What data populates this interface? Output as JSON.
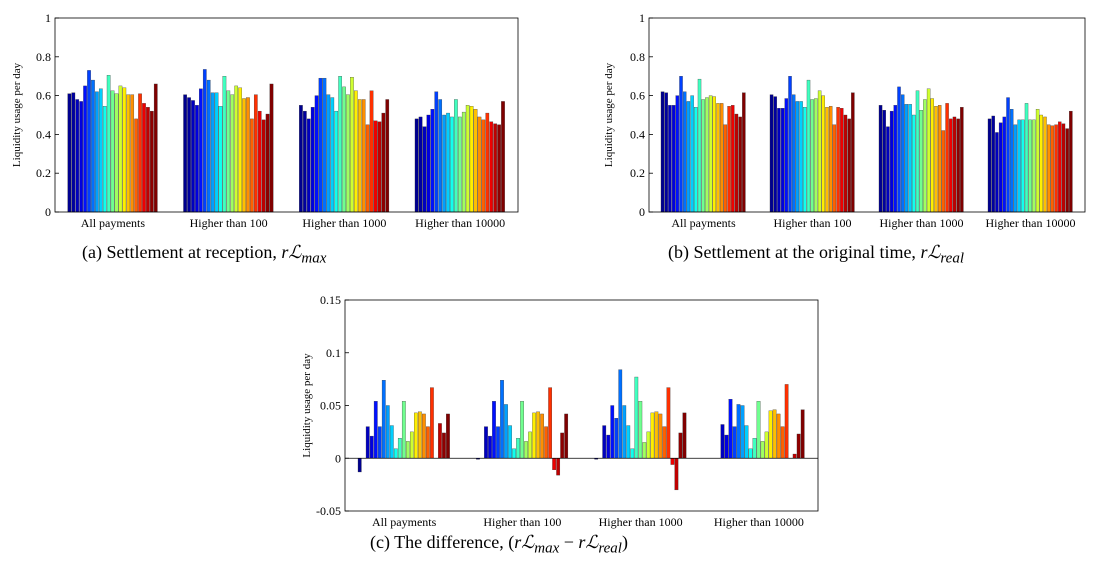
{
  "captions": {
    "a": {
      "prefix": "(a)   Settlement at reception, ",
      "symbol": "rℒ",
      "sub": "max"
    },
    "b": {
      "prefix": "(b)   Settlement at the original time, ",
      "symbol": "rℒ",
      "sub": "real"
    },
    "c": {
      "prefix": "(c)   The difference, ",
      "expr_open": "(",
      "sym1": "rℒ",
      "sub1": "max",
      "minus": " − ",
      "sym2": "rℒ",
      "sub2": "real",
      "expr_close": ")"
    }
  },
  "chart_data": [
    {
      "id": "a",
      "type": "bar",
      "ylabel": "Liquidity usage per day",
      "ylim": [
        0,
        1
      ],
      "yticks": [
        0,
        0.2,
        0.4,
        0.6,
        0.8,
        1
      ],
      "ytick_labels": [
        "0",
        "0.2",
        "0.4",
        "0.6",
        "0.8",
        "1"
      ],
      "categories": [
        "All payments",
        "Higher than 100",
        "Higher than 1000",
        "Higher than 10000"
      ],
      "colors": [
        "#00008f",
        "#00009f",
        "#0000bf",
        "#0000df",
        "#0010ff",
        "#0040ff",
        "#0070ff",
        "#00a0ff",
        "#00cfff",
        "#10ffef",
        "#40ffbf",
        "#70ff8f",
        "#a0ff60",
        "#cfff30",
        "#ffef00",
        "#ffbf00",
        "#ff8f00",
        "#ff6000",
        "#ff3000",
        "#ef0000",
        "#bf0000",
        "#8f0000",
        "#800000"
      ],
      "groups": [
        [
          0.61,
          0.615,
          0.58,
          0.57,
          0.65,
          0.73,
          0.68,
          0.62,
          0.635,
          0.545,
          0.705,
          0.625,
          0.61,
          0.65,
          0.64,
          0.605,
          0.605,
          0.48,
          0.61,
          0.56,
          0.54,
          0.52,
          0.66
        ],
        [
          0.605,
          0.59,
          0.575,
          0.55,
          0.635,
          0.735,
          0.68,
          0.615,
          0.615,
          0.545,
          0.7,
          0.625,
          0.605,
          0.65,
          0.64,
          0.585,
          0.59,
          0.48,
          0.605,
          0.52,
          0.475,
          0.505,
          0.66
        ],
        [
          0.55,
          0.52,
          0.48,
          0.54,
          0.6,
          0.69,
          0.69,
          0.605,
          0.59,
          0.52,
          0.7,
          0.645,
          0.605,
          0.695,
          0.625,
          0.58,
          0.58,
          0.45,
          0.625,
          0.47,
          0.465,
          0.51,
          0.58
        ],
        [
          0.48,
          0.49,
          0.44,
          0.5,
          0.53,
          0.62,
          0.58,
          0.5,
          0.51,
          0.49,
          0.58,
          0.49,
          0.515,
          0.55,
          0.545,
          0.53,
          0.49,
          0.475,
          0.51,
          0.465,
          0.455,
          0.45,
          0.57
        ]
      ]
    },
    {
      "id": "b",
      "type": "bar",
      "ylabel": "Liquidity usage per day",
      "ylim": [
        0,
        1
      ],
      "yticks": [
        0,
        0.2,
        0.4,
        0.6,
        0.8,
        1
      ],
      "ytick_labels": [
        "0",
        "0.2",
        "0.4",
        "0.6",
        "0.8",
        "1"
      ],
      "categories": [
        "All payments",
        "Higher than 100",
        "Higher than 1000",
        "Higher than 10000"
      ],
      "colors": [
        "#00008f",
        "#00009f",
        "#0000bf",
        "#0000df",
        "#0010ff",
        "#0040ff",
        "#0070ff",
        "#00a0ff",
        "#00cfff",
        "#10ffef",
        "#40ffbf",
        "#70ff8f",
        "#a0ff60",
        "#cfff30",
        "#ffef00",
        "#ffbf00",
        "#ff8f00",
        "#ff6000",
        "#ff3000",
        "#ef0000",
        "#bf0000",
        "#8f0000",
        "#800000"
      ],
      "groups": [
        [
          0.62,
          0.615,
          0.55,
          0.55,
          0.6,
          0.7,
          0.62,
          0.57,
          0.6,
          0.54,
          0.685,
          0.58,
          0.59,
          0.6,
          0.595,
          0.56,
          0.56,
          0.45,
          0.545,
          0.55,
          0.505,
          0.49,
          0.615
        ],
        [
          0.605,
          0.595,
          0.535,
          0.535,
          0.585,
          0.7,
          0.605,
          0.57,
          0.57,
          0.54,
          0.68,
          0.58,
          0.585,
          0.625,
          0.6,
          0.54,
          0.545,
          0.45,
          0.54,
          0.535,
          0.5,
          0.48,
          0.615
        ],
        [
          0.55,
          0.525,
          0.44,
          0.52,
          0.55,
          0.645,
          0.605,
          0.555,
          0.555,
          0.5,
          0.625,
          0.525,
          0.58,
          0.635,
          0.585,
          0.545,
          0.55,
          0.42,
          0.56,
          0.48,
          0.49,
          0.48,
          0.54
        ],
        [
          0.48,
          0.495,
          0.41,
          0.46,
          0.49,
          0.59,
          0.53,
          0.45,
          0.475,
          0.475,
          0.56,
          0.475,
          0.475,
          0.53,
          0.5,
          0.49,
          0.45,
          0.445,
          0.45,
          0.465,
          0.455,
          0.43,
          0.52
        ]
      ]
    },
    {
      "id": "c",
      "type": "bar",
      "ylabel": "Liquidity usage per day",
      "ylim": [
        -0.05,
        0.15
      ],
      "yticks": [
        -0.05,
        0,
        0.05,
        0.1,
        0.15
      ],
      "ytick_labels": [
        "-0.05",
        "0",
        "0.05",
        "0.1",
        "0.15"
      ],
      "categories": [
        "All payments",
        "Higher than 100",
        "Higher than 1000",
        "Higher than 10000"
      ],
      "colors": [
        "#00008f",
        "#00009f",
        "#0000bf",
        "#0000df",
        "#0010ff",
        "#0040ff",
        "#0070ff",
        "#00a0ff",
        "#00cfff",
        "#10ffef",
        "#40ffbf",
        "#70ff8f",
        "#a0ff60",
        "#cfff30",
        "#ffef00",
        "#ffbf00",
        "#ff8f00",
        "#ff6000",
        "#ff3000",
        "#ef0000",
        "#bf0000",
        "#8f0000",
        "#800000"
      ],
      "groups": [
        [
          -0.013,
          0,
          0.03,
          0.021,
          0.054,
          0.03,
          0.074,
          0.05,
          0.031,
          0.009,
          0.019,
          0.054,
          0.016,
          0.025,
          0.043,
          0.044,
          0.042,
          0.03,
          0.067,
          0,
          0.033,
          0.024,
          0.042
        ],
        [
          -0.001,
          0,
          0.03,
          0.021,
          0.054,
          0.03,
          0.074,
          0.051,
          0.031,
          0.009,
          0.019,
          0.054,
          0.016,
          0.025,
          0.043,
          0.044,
          0.042,
          0.03,
          0.067,
          -0.011,
          -0.016,
          0.024,
          0.042
        ],
        [
          -0.001,
          0,
          0.031,
          0.022,
          0.05,
          0.038,
          0.084,
          0.05,
          0.031,
          0.009,
          0.077,
          0.054,
          0.015,
          0.025,
          0.043,
          0.044,
          0.042,
          0.03,
          0.067,
          -0.006,
          -0.03,
          0.024,
          0.043
        ],
        [
          0,
          0,
          0.032,
          0.022,
          0.056,
          0.03,
          0.051,
          0.05,
          0.031,
          0.009,
          0.019,
          0.054,
          0.016,
          0.025,
          0.045,
          0.046,
          0.042,
          0.03,
          0.07,
          0,
          0.004,
          0.023,
          0.046
        ]
      ]
    }
  ]
}
